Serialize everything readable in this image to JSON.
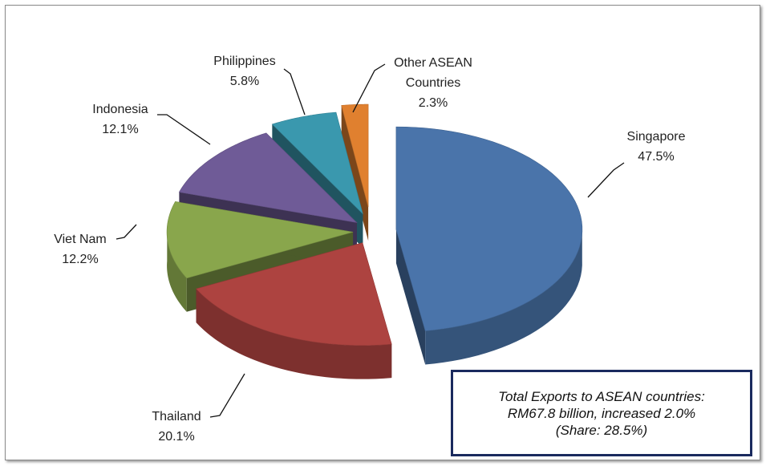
{
  "chart_data": {
    "type": "pie",
    "style": "3d-exploded",
    "title": "",
    "slices": [
      {
        "label": "Singapore",
        "value": 47.5,
        "value_label": "47.5%",
        "color": "#4a74aa"
      },
      {
        "label": "Thailand",
        "value": 20.1,
        "value_label": "20.1%",
        "color": "#ad4340"
      },
      {
        "label": "Viet Nam",
        "value": 12.2,
        "value_label": "12.2%",
        "color": "#89a64c"
      },
      {
        "label": "Indonesia",
        "value": 12.1,
        "value_label": "12.1%",
        "color": "#6f5b97"
      },
      {
        "label": "Philippines",
        "value": 5.8,
        "value_label": "5.8%",
        "color": "#3a98ae"
      },
      {
        "label_lines": [
          "Other ASEAN",
          "Countries"
        ],
        "label": "Other ASEAN Countries",
        "value": 2.3,
        "value_label": "2.3%",
        "color": "#e0802f"
      }
    ],
    "annotation": {
      "line1": "Total Exports to ASEAN countries:",
      "line2": "RM67.8 billion, increased 2.0%",
      "line3": "(Share: 28.5%)"
    }
  }
}
